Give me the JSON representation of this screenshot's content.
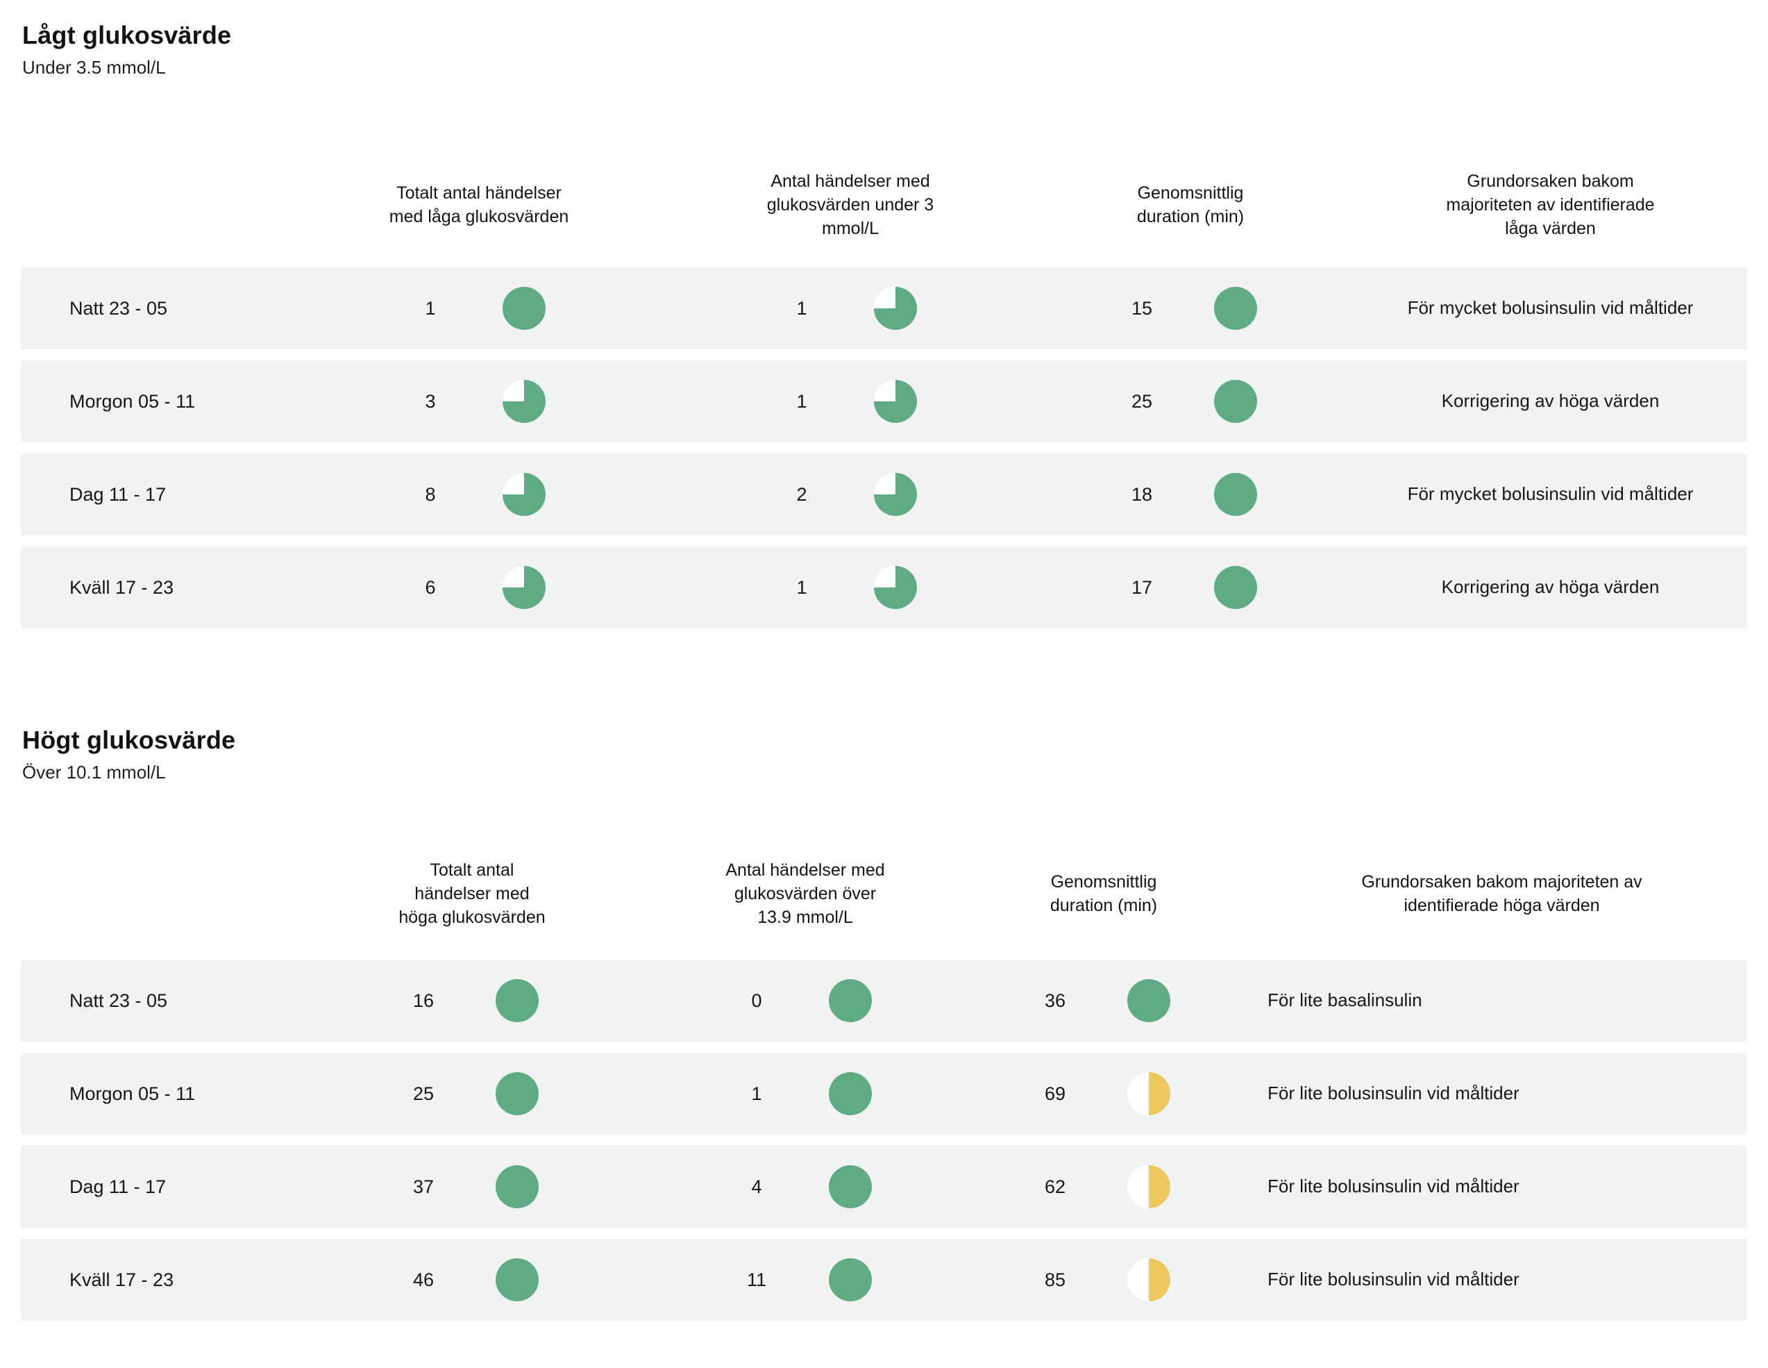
{
  "colors": {
    "green": "#5fac84",
    "yellow": "#eec85f",
    "row_bg": "#f1f2f2"
  },
  "low": {
    "title": "Lågt glukosvärde",
    "subtitle": "Under 3.5 mmol/L",
    "columns": [
      "Totalt antal händelser\nmed låga glukosvärden",
      "Antal händelser med\nglukosvärden under 3\nmmol/L",
      "Genomsnittlig\nduration (min)",
      "Grundorsaken bakom\nmajoriteten av identifierade\nlåga värden"
    ],
    "rows": [
      {
        "label": "Natt 23 - 05",
        "total": "1",
        "total_pie": {
          "fraction": 1,
          "color": "green"
        },
        "threshold": "1",
        "threshold_pie": {
          "fraction": 0.75,
          "color": "green"
        },
        "duration": "15",
        "duration_pie": {
          "fraction": 1,
          "color": "green"
        },
        "cause": "För mycket bolusinsulin vid måltider"
      },
      {
        "label": "Morgon 05 - 11",
        "total": "3",
        "total_pie": {
          "fraction": 0.75,
          "color": "green"
        },
        "threshold": "1",
        "threshold_pie": {
          "fraction": 0.75,
          "color": "green"
        },
        "duration": "25",
        "duration_pie": {
          "fraction": 1,
          "color": "green"
        },
        "cause": "Korrigering av höga värden"
      },
      {
        "label": "Dag 11 - 17",
        "total": "8",
        "total_pie": {
          "fraction": 0.75,
          "color": "green"
        },
        "threshold": "2",
        "threshold_pie": {
          "fraction": 0.75,
          "color": "green"
        },
        "duration": "18",
        "duration_pie": {
          "fraction": 1,
          "color": "green"
        },
        "cause": "För mycket bolusinsulin vid måltider"
      },
      {
        "label": "Kväll 17 - 23",
        "total": "6",
        "total_pie": {
          "fraction": 0.75,
          "color": "green"
        },
        "threshold": "1",
        "threshold_pie": {
          "fraction": 0.75,
          "color": "green"
        },
        "duration": "17",
        "duration_pie": {
          "fraction": 1,
          "color": "green"
        },
        "cause": "Korrigering av höga värden"
      }
    ]
  },
  "high": {
    "title": "Högt glukosvärde",
    "subtitle": "Över 10.1 mmol/L",
    "columns": [
      "Totalt antal\nhändelser med\nhöga glukosvärden",
      "Antal händelser med\nglukosvärden över\n13.9 mmol/L",
      "Genomsnittlig\nduration (min)",
      "Grundorsaken bakom majoriteten av\nidentifierade höga värden"
    ],
    "rows": [
      {
        "label": "Natt 23 - 05",
        "total": "16",
        "total_pie": {
          "fraction": 1,
          "color": "green"
        },
        "threshold": "0",
        "threshold_pie": {
          "fraction": 1,
          "color": "green"
        },
        "duration": "36",
        "duration_pie": {
          "fraction": 1,
          "color": "green"
        },
        "cause": "För lite basalinsulin"
      },
      {
        "label": "Morgon 05 - 11",
        "total": "25",
        "total_pie": {
          "fraction": 1,
          "color": "green"
        },
        "threshold": "1",
        "threshold_pie": {
          "fraction": 1,
          "color": "green"
        },
        "duration": "69",
        "duration_pie": {
          "fraction": 0.5,
          "color": "yellow"
        },
        "cause": "För lite bolusinsulin vid måltider"
      },
      {
        "label": "Dag 11 - 17",
        "total": "37",
        "total_pie": {
          "fraction": 1,
          "color": "green"
        },
        "threshold": "4",
        "threshold_pie": {
          "fraction": 1,
          "color": "green"
        },
        "duration": "62",
        "duration_pie": {
          "fraction": 0.5,
          "color": "yellow"
        },
        "cause": "För lite bolusinsulin vid måltider"
      },
      {
        "label": "Kväll 17 - 23",
        "total": "46",
        "total_pie": {
          "fraction": 1,
          "color": "green"
        },
        "threshold": "11",
        "threshold_pie": {
          "fraction": 1,
          "color": "green"
        },
        "duration": "85",
        "duration_pie": {
          "fraction": 0.5,
          "color": "yellow"
        },
        "cause": "För lite bolusinsulin vid måltider"
      }
    ]
  }
}
